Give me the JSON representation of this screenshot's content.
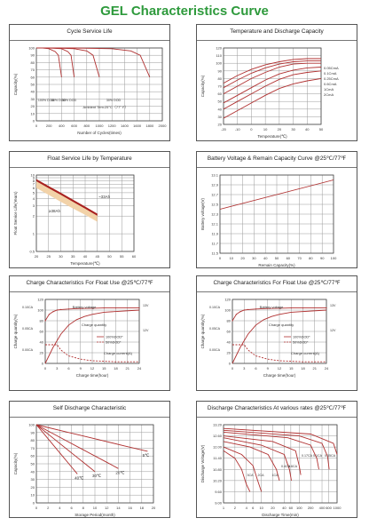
{
  "page_title": "GEL Characteristics Curve",
  "colors": {
    "title": "#2e9a3c",
    "curve": "#b03030",
    "grid": "#9a9a9a",
    "band_dark": "#a82020",
    "band_light": "#f2d2a8"
  },
  "chart_data": [
    {
      "id": "cycle",
      "type": "line",
      "title": "Cycle Service Life",
      "xlabel": "Number of Cycles(times)",
      "ylabel": "Capacity(%)",
      "xlim": [
        0,
        2000
      ],
      "ylim": [
        0,
        100
      ],
      "x_ticks": [
        "0",
        "200",
        "400",
        "600",
        "800",
        "1000",
        "1200",
        "1400",
        "1600",
        "1800",
        "2000"
      ],
      "y_ticks": [
        "0",
        "10",
        "20",
        "30",
        "40",
        "50",
        "60",
        "70",
        "80",
        "90",
        "100"
      ],
      "annotation": "Ambient Tem:25°C（77° F）",
      "series": [
        {
          "name": "100% DOD",
          "x": [
            0,
            100,
            200,
            300,
            350,
            400
          ],
          "y": [
            100,
            100,
            99,
            95,
            90,
            60
          ]
        },
        {
          "name": "80% DOD",
          "x": [
            0,
            200,
            400,
            500,
            550,
            600
          ],
          "y": [
            100,
            100,
            99,
            95,
            90,
            60
          ]
        },
        {
          "name": "50% DOD",
          "x": [
            0,
            300,
            600,
            800,
            900,
            1000
          ],
          "y": [
            100,
            100,
            99,
            96,
            90,
            60
          ]
        },
        {
          "name": "30% DOD",
          "x": [
            0,
            600,
            1200,
            1500,
            1650,
            1800
          ],
          "y": [
            100,
            100,
            99,
            96,
            90,
            60
          ]
        }
      ]
    },
    {
      "id": "temp",
      "type": "line",
      "title": "Temperature  and  Discharge  Capacity",
      "xlabel": "Temperature(℃)",
      "ylabel": "Capacity(%)",
      "xlim": [
        -20,
        50
      ],
      "ylim": [
        20,
        120
      ],
      "x_ticks": [
        "-20",
        "-10",
        "0",
        "10",
        "20",
        "30",
        "40",
        "50"
      ],
      "y_ticks": [
        "20",
        "30",
        "40",
        "50",
        "60",
        "70",
        "80",
        "90",
        "100",
        "110",
        "120"
      ],
      "series": [
        {
          "name": "0.05CmA",
          "x": [
            -20,
            -10,
            0,
            10,
            20,
            30,
            40,
            50
          ],
          "y": [
            74,
            84,
            92,
            98,
            102,
            105,
            106,
            106
          ]
        },
        {
          "name": "0.1CmA",
          "x": [
            -20,
            -10,
            0,
            10,
            20,
            30,
            40,
            50
          ],
          "y": [
            68,
            78,
            87,
            94,
            99,
            102,
            103,
            103
          ]
        },
        {
          "name": "0.25CmA",
          "x": [
            -20,
            -10,
            0,
            10,
            20,
            30,
            40,
            50
          ],
          "y": [
            60,
            70,
            80,
            88,
            95,
            99,
            100,
            100
          ]
        },
        {
          "name": "0.6CmA",
          "x": [
            -20,
            -10,
            0,
            10,
            20,
            30,
            40,
            50
          ],
          "y": [
            48,
            58,
            68,
            78,
            86,
            91,
            94,
            95
          ]
        },
        {
          "name": "1CmA",
          "x": [
            -20,
            -10,
            0,
            10,
            20,
            30,
            40,
            50
          ],
          "y": [
            40,
            50,
            60,
            70,
            79,
            85,
            88,
            90
          ]
        },
        {
          "name": "2CmA",
          "x": [
            -20,
            -10,
            0,
            10,
            20,
            30,
            40,
            50
          ],
          "y": [
            28,
            38,
            48,
            58,
            67,
            73,
            77,
            80
          ]
        }
      ]
    },
    {
      "id": "float",
      "type": "area",
      "title": "Float Service Life by Temperature",
      "xlabel": "Temperature(℃)",
      "ylabel": "Float Service Life(Years)",
      "xlim": [
        20,
        60
      ],
      "ylim": [
        0.5,
        10
      ],
      "yscale": "log",
      "x_ticks": [
        "20",
        "25",
        "30",
        "35",
        "40",
        "45",
        "50",
        "55",
        "60"
      ],
      "y_ticks": [
        "0.5",
        "1",
        "2",
        "3",
        "4",
        "5",
        "6",
        "7",
        "8",
        "9",
        "10"
      ],
      "series": [
        {
          "name": "~33Ah",
          "x": [
            20,
            25,
            30,
            35,
            40,
            45
          ],
          "y": [
            8.5,
            6.5,
            5.0,
            3.8,
            2.9,
            2.2
          ]
        },
        {
          "name": "≥38Ah",
          "x": [
            20,
            25,
            30,
            35,
            40,
            45
          ],
          "y": [
            6.0,
            4.6,
            3.5,
            2.7,
            2.1,
            1.6
          ]
        }
      ]
    },
    {
      "id": "volt",
      "type": "line",
      "title": "Battery Voltage & Remain Capacity Curve @25℃/77℉",
      "xlabel": "Remain Capacity(%)",
      "ylabel": "Battery voltage(V)",
      "xlim": [
        0,
        100
      ],
      "ylim": [
        11.5,
        13.1
      ],
      "x_ticks": [
        "0",
        "10",
        "20",
        "30",
        "40",
        "50",
        "60",
        "70",
        "80",
        "90",
        "100"
      ],
      "y_ticks": [
        "11.5",
        "11.7",
        "11.9",
        "12.1",
        "12.3",
        "12.5",
        "12.7",
        "12.9",
        "13.1"
      ],
      "series": [
        {
          "name": "",
          "x": [
            0,
            100
          ],
          "y": [
            12.4,
            13.0
          ]
        }
      ]
    },
    {
      "id": "charge1",
      "type": "line",
      "title": "Charge Characteristics For Float Use @25℃/77℉",
      "xlabel": "Charge time(hour)",
      "ylabel": "Charge quantity(%)",
      "xlim": [
        0,
        24
      ],
      "ylim": [
        0,
        120
      ],
      "x_ticks": [
        "0",
        "3",
        "6",
        "9",
        "12",
        "15",
        "18",
        "21",
        "24"
      ],
      "y_ticks": [
        "0",
        "20",
        "40",
        "60",
        "80",
        "100",
        "120"
      ],
      "left_labels": [
        "0.10CA",
        "0.05CA",
        "0.00CA"
      ],
      "right_labels": [
        "13V",
        "12V"
      ],
      "annotations": [
        "Battery voltage",
        "Charge quantity",
        "Charge current(A)"
      ],
      "legend": [
        "100%DOD*",
        "50%DOD*"
      ],
      "series": [
        {
          "name": "Battery voltage",
          "x": [
            0,
            1,
            2,
            3,
            4,
            6,
            9,
            12,
            15,
            18,
            24
          ],
          "y": [
            80,
            92,
            97,
            100,
            101,
            102,
            103,
            103.5,
            104,
            104,
            104
          ]
        },
        {
          "name": "Charge quantity",
          "x": [
            0,
            2,
            4,
            6,
            8,
            10,
            12,
            15,
            24
          ],
          "y": [
            0,
            30,
            55,
            72,
            82,
            88,
            92,
            96,
            100
          ]
        },
        {
          "name": "Charge current(A)",
          "x": [
            0,
            3,
            4,
            6,
            9,
            12,
            15,
            18,
            24
          ],
          "y": [
            35,
            35,
            25,
            14,
            8,
            5,
            4,
            3,
            3
          ]
        }
      ]
    },
    {
      "id": "charge2",
      "type": "line",
      "title": "Charge Characteristics For Float Use @25℃/77℉",
      "xlabel": "Charge time(hour)",
      "ylabel": "Charge quantity(%)",
      "xlim": [
        0,
        24
      ],
      "ylim": [
        0,
        120
      ],
      "x_ticks": [
        "0",
        "3",
        "6",
        "9",
        "12",
        "15",
        "18",
        "21",
        "24"
      ],
      "y_ticks": [
        "0",
        "20",
        "40",
        "60",
        "80",
        "100",
        "120"
      ],
      "left_labels": [
        "0.10CA",
        "0.05CA",
        "0.00CA"
      ],
      "right_labels": [
        "13V",
        "12V"
      ],
      "annotations": [
        "Battery voltage",
        "Charge quantity",
        "Charge current(A)"
      ],
      "legend": [
        "100%DOD*",
        "50%DOD*"
      ],
      "series": [
        {
          "name": "Battery voltage",
          "x": [
            0,
            1,
            2,
            3,
            4,
            6,
            9,
            12,
            15,
            18,
            24
          ],
          "y": [
            80,
            92,
            97,
            100,
            101,
            102,
            103,
            103.5,
            104,
            104,
            104
          ]
        },
        {
          "name": "Charge quantity",
          "x": [
            0,
            2,
            4,
            6,
            8,
            10,
            12,
            15,
            24
          ],
          "y": [
            0,
            30,
            55,
            72,
            82,
            88,
            92,
            96,
            100
          ]
        },
        {
          "name": "Charge current(A)",
          "x": [
            0,
            3,
            4,
            6,
            9,
            12,
            15,
            18,
            24
          ],
          "y": [
            35,
            35,
            25,
            14,
            8,
            5,
            4,
            3,
            3
          ]
        }
      ]
    },
    {
      "id": "selfdis",
      "type": "line",
      "title": "Self Discharge Characteristic",
      "xlabel": "Storage Period(month)",
      "ylabel": "Capacity(%)",
      "xlim": [
        0,
        20
      ],
      "ylim": [
        0,
        100
      ],
      "x_ticks": [
        "0",
        "2",
        "4",
        "6",
        "8",
        "10",
        "12",
        "14",
        "16",
        "18",
        "20"
      ],
      "y_ticks": [
        "0",
        "10",
        "20",
        "30",
        "40",
        "50",
        "60",
        "70",
        "80",
        "90",
        "100"
      ],
      "series": [
        {
          "name": "40℃",
          "x": [
            0,
            2,
            4,
            6,
            7
          ],
          "y": [
            100,
            82,
            64,
            46,
            37
          ]
        },
        {
          "name": "30℃",
          "x": [
            0,
            3,
            6,
            9,
            10
          ],
          "y": [
            100,
            82,
            64,
            46,
            40
          ]
        },
        {
          "name": "20℃",
          "x": [
            0,
            4,
            8,
            12,
            14
          ],
          "y": [
            100,
            84,
            68,
            52,
            44
          ]
        },
        {
          "name": "5℃",
          "x": [
            0,
            5,
            10,
            15,
            19
          ],
          "y": [
            100,
            91,
            82,
            73,
            66
          ]
        }
      ]
    },
    {
      "id": "disrate",
      "type": "line",
      "title": "Discharge  Characteristics  At various rates @25℃/77℉",
      "xlabel": "Discharge Time(min)",
      "ylabel": "Discharge Voltage(V)",
      "xlim": [
        1,
        1000
      ],
      "xscale": "log",
      "ylim": [
        9.0,
        13.2
      ],
      "x_ticks": [
        "1",
        "2",
        "4",
        "6",
        "10",
        "20",
        "40",
        "60",
        "100",
        "200",
        "400",
        "600",
        "1000"
      ],
      "y_ticks": [
        "9.00",
        "9.60",
        "10.20",
        "10.80",
        "11.40",
        "12.00",
        "12.60",
        "13.20"
      ],
      "annotations": [
        "0.05CA",
        "0.1CA",
        "0.17CA",
        "0.6CA",
        "0.4CA",
        "1CA",
        "2CA",
        "3CA"
      ],
      "series": [
        {
          "name": "3CA",
          "x": [
            1,
            2,
            3,
            4,
            5
          ],
          "y": [
            11.8,
            11.4,
            10.8,
            10.0,
            9.6
          ]
        },
        {
          "name": "2CA",
          "x": [
            1,
            3,
            6,
            8,
            10
          ],
          "y": [
            12.0,
            11.6,
            11.0,
            10.2,
            9.6
          ]
        },
        {
          "name": "1CA",
          "x": [
            1,
            5,
            15,
            25,
            30
          ],
          "y": [
            12.3,
            12.0,
            11.6,
            10.8,
            10.2
          ]
        },
        {
          "name": "0.6CA",
          "x": [
            1,
            10,
            40,
            55,
            62
          ],
          "y": [
            12.5,
            12.1,
            11.6,
            10.8,
            10.2
          ]
        },
        {
          "name": "0.4CA",
          "x": [
            1,
            20,
            80,
            100,
            110
          ],
          "y": [
            12.6,
            12.3,
            11.8,
            11.0,
            10.5
          ]
        },
        {
          "name": "0.17CA",
          "x": [
            1,
            50,
            200,
            290,
            330
          ],
          "y": [
            12.8,
            12.5,
            12.1,
            11.4,
            10.8
          ]
        },
        {
          "name": "0.1CA",
          "x": [
            1,
            100,
            400,
            560,
            620
          ],
          "y": [
            12.9,
            12.6,
            12.2,
            11.5,
            10.8
          ]
        },
        {
          "name": "0.05CA",
          "x": [
            1,
            200,
            800,
            1000
          ],
          "y": [
            13.0,
            12.7,
            12.2,
            11.6
          ]
        }
      ]
    }
  ]
}
